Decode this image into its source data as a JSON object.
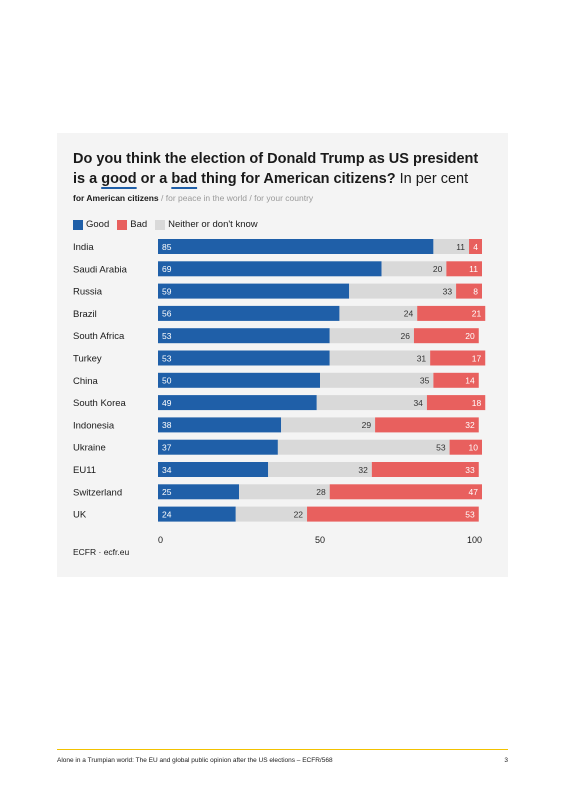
{
  "title": {
    "part1": "Do you think the election of Donald Trump as US president is a ",
    "good": "good",
    "part2": " or a ",
    "bad": "bad",
    "part3": " thing for American citizens?",
    "unit": " In per cent"
  },
  "views": {
    "selected": "for American citizens",
    "others": " / for peace in the world / for your country"
  },
  "legend": [
    {
      "label": "Good",
      "color": "#1f5fa8"
    },
    {
      "label": "Bad",
      "color": "#e8605e"
    },
    {
      "label": "Neither or don't know",
      "color": "#d9d9d9"
    }
  ],
  "chart_data": {
    "type": "bar",
    "orientation": "horizontal",
    "stacked": true,
    "categories": [
      "India",
      "Saudi Arabia",
      "Russia",
      "Brazil",
      "South Africa",
      "Turkey",
      "China",
      "South Korea",
      "Indonesia",
      "Ukraine",
      "EU11",
      "Switzerland",
      "UK"
    ],
    "series": [
      {
        "name": "Good",
        "color": "#1f5fa8",
        "values": [
          85,
          69,
          59,
          56,
          53,
          53,
          50,
          49,
          38,
          37,
          34,
          25,
          24
        ]
      },
      {
        "name": "Neither or don't know",
        "color": "#d9d9d9",
        "values": [
          11,
          20,
          33,
          24,
          26,
          31,
          35,
          34,
          29,
          53,
          32,
          28,
          22
        ]
      },
      {
        "name": "Bad",
        "color": "#e8605e",
        "values": [
          4,
          11,
          8,
          21,
          20,
          17,
          14,
          18,
          32,
          10,
          33,
          47,
          53
        ]
      }
    ],
    "xlim": [
      0,
      100
    ],
    "xticks": [
      0,
      50,
      100
    ],
    "grid": false,
    "legend_position": "top-left"
  },
  "source": "ECFR · ecfr.eu",
  "footer": {
    "text": "Alone in a Trumpian world: The EU and global public opinion after the US elections – ECFR/568",
    "page": "3"
  }
}
